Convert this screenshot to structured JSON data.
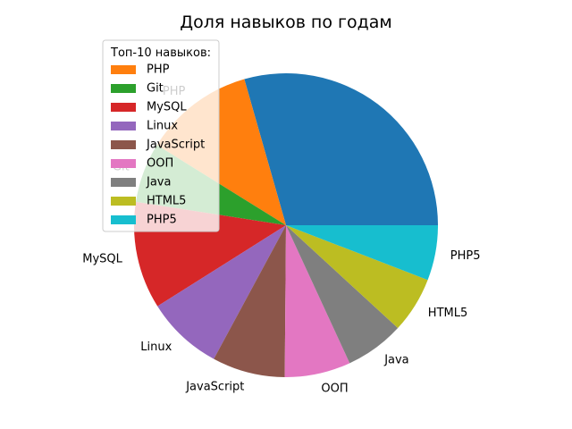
{
  "chart_data": {
    "type": "pie",
    "title": "Доля навыков по годам",
    "categories": [
      "",
      "PHP",
      "Git",
      "MySQL",
      "Linux",
      "JavaScript",
      "ООП",
      "Java",
      "HTML5",
      "PHP5"
    ],
    "values": [
      28.1,
      11.2,
      6.1,
      10.9,
      7.8,
      7.4,
      6.7,
      6.0,
      5.7,
      5.6
    ],
    "colors": [
      "#1f77b4",
      "#ff7f0e",
      "#2ca02c",
      "#d62728",
      "#9467bd",
      "#8c564b",
      "#e377c2",
      "#7f7f7f",
      "#bcbd22",
      "#17becf"
    ],
    "start_angle": 0,
    "direction": "counterclockwise",
    "legend": {
      "title": "Топ-10 навыков:",
      "placement": "upper-left",
      "entries": [
        "PHP",
        "Git",
        "MySQL",
        "Linux",
        "JavaScript",
        "ООП",
        "Java",
        "HTML5",
        "PHP5"
      ]
    }
  }
}
